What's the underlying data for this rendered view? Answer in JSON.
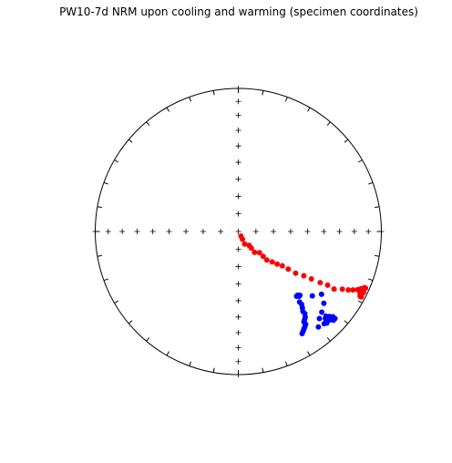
{
  "title": "PW10-7d NRM upon cooling and warming (specimen coordinates)",
  "colors": {
    "frame": "#000000",
    "cooling": "#ff0000",
    "warming": "#0000ff"
  },
  "chart_data": {
    "type": "scatter",
    "projection": "equal-area stereonet",
    "title": "PW10-7d NRM upon cooling and warming (specimen coordinates)",
    "series": [
      {
        "color": "#ff0000",
        "points": [
          {
            "dec": 150,
            "inc": 87
          },
          {
            "dec": 152,
            "inc": 85
          },
          {
            "dec": 153,
            "inc": 82
          },
          {
            "dec": 142,
            "inc": 80
          },
          {
            "dec": 142,
            "inc": 78
          },
          {
            "dec": 142,
            "inc": 75
          },
          {
            "dec": 135,
            "inc": 73
          },
          {
            "dec": 135,
            "inc": 70
          },
          {
            "dec": 135,
            "inc": 67
          },
          {
            "dec": 132,
            "inc": 64
          },
          {
            "dec": 130,
            "inc": 61
          },
          {
            "dec": 128,
            "inc": 58
          },
          {
            "dec": 127,
            "inc": 54
          },
          {
            "dec": 126,
            "inc": 49
          },
          {
            "dec": 124,
            "inc": 44
          },
          {
            "dec": 123,
            "inc": 39
          },
          {
            "dec": 122,
            "inc": 33
          },
          {
            "dec": 121,
            "inc": 28
          },
          {
            "dec": 121,
            "inc": 23
          },
          {
            "dec": 119,
            "inc": 18
          },
          {
            "dec": 118,
            "inc": 14
          },
          {
            "dec": 117,
            "inc": 11
          },
          {
            "dec": 116,
            "inc": 8
          },
          {
            "dec": 115,
            "inc": 6
          },
          {
            "dec": 115,
            "inc": 5
          },
          {
            "dec": 117,
            "inc": 5
          },
          {
            "dec": 116,
            "inc": 4
          },
          {
            "dec": 118,
            "inc": 4
          },
          {
            "dec": 114,
            "inc": 4
          },
          {
            "dec": 114,
            "inc": 3
          },
          {
            "dec": 116,
            "inc": 3
          },
          {
            "dec": 118,
            "inc": 3
          }
        ]
      },
      {
        "color": "#0000ff",
        "points": [
          {
            "dec": 140,
            "inc": 14
          },
          {
            "dec": 137,
            "inc": 18
          },
          {
            "dec": 134,
            "inc": 20
          },
          {
            "dec": 130,
            "inc": 23
          },
          {
            "dec": 127,
            "inc": 28
          },
          {
            "dec": 131,
            "inc": 32
          },
          {
            "dec": 137,
            "inc": 38
          },
          {
            "dec": 137,
            "inc": 39
          },
          {
            "dec": 138,
            "inc": 39
          },
          {
            "dec": 136,
            "inc": 38
          },
          {
            "dec": 139,
            "inc": 35
          },
          {
            "dec": 139,
            "inc": 33
          },
          {
            "dec": 140,
            "inc": 31
          },
          {
            "dec": 141,
            "inc": 29
          },
          {
            "dec": 141,
            "inc": 27
          },
          {
            "dec": 142,
            "inc": 25
          },
          {
            "dec": 143,
            "inc": 24
          },
          {
            "dec": 144,
            "inc": 23
          },
          {
            "dec": 144,
            "inc": 21
          },
          {
            "dec": 145,
            "inc": 20
          },
          {
            "dec": 146,
            "inc": 19
          },
          {
            "dec": 147,
            "inc": 18
          },
          {
            "dec": 148,
            "inc": 17
          },
          {
            "dec": 133,
            "inc": 14
          },
          {
            "dec": 134,
            "inc": 12
          },
          {
            "dec": 133,
            "inc": 10
          },
          {
            "dec": 132,
            "inc": 12
          },
          {
            "dec": 132,
            "inc": 10
          },
          {
            "dec": 135,
            "inc": 15
          },
          {
            "dec": 134,
            "inc": 16
          },
          {
            "dec": 136,
            "inc": 12
          },
          {
            "dec": 137,
            "inc": 13
          }
        ]
      }
    ],
    "grid": false,
    "axis_ticks": "crosses every 10 degrees of inclination along N-S and E-W axes"
  }
}
